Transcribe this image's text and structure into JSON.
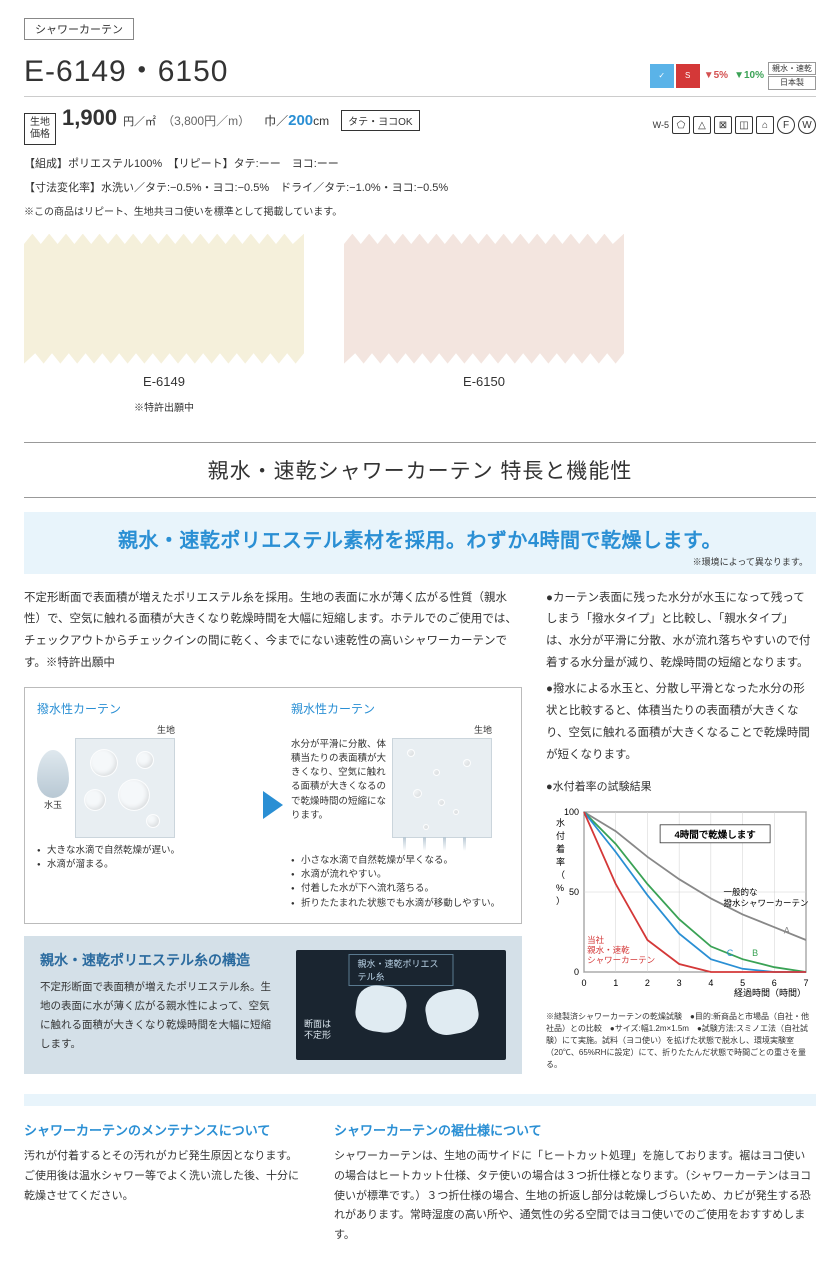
{
  "category_tag": "シャワーカーテン",
  "product_code": "E-6149・6150",
  "top_badges": {
    "b1_bg": "#5ab3e8",
    "b2_bg": "#d43838",
    "pct1": "5%",
    "pct1_color": "#d45050",
    "pct2": "10%",
    "pct2_color": "#3aa255",
    "side1": "親水・速乾",
    "side2": "日本製"
  },
  "price_label": "生地\n価格",
  "price_main": "1,900",
  "price_unit": "円／㎡",
  "price_sub": "（3,800円／m）",
  "width_label": "巾／",
  "width_val": "200",
  "width_unit": "cm",
  "ok_tag": "タテ・ヨコOK",
  "care_label": "W-5",
  "spec1": "【組成】ポリエステル100%　【リピート】タテ:ーー　ヨコ:ーー",
  "spec2": "【寸法変化率】水洗い／タテ:−0.5%・ヨコ:−0.5%　ドライ／タテ:−1.0%・ヨコ:−0.5%",
  "note1": "※この商品はリピート、生地共ヨコ使いを標準として掲載しています。",
  "swatches": [
    {
      "code": "E-6149",
      "color": "#f5f0db"
    },
    {
      "code": "E-6150",
      "color": "#f3e5df"
    }
  ],
  "patent_note": "※特許出願中",
  "section_title": "親水・速乾シャワーカーテン 特長と機能性",
  "headline": "親水・速乾ポリエステル素材を採用。わずか4時間で乾燥します。",
  "headline_note": "※環境によって異なります。",
  "body_left": "不定形断面で表面積が増えたポリエステル糸を採用。生地の表面に水が薄く広がる性質（親水性）で、空気に触れる面積が大きくなり乾燥時間を大幅に短縮します。ホテルでのご使用では、チェックアウトからチェックインの間に乾く、今までにない速乾性の高いシャワーカーテンです。※特許出願中",
  "body_right1": "●カーテン表面に残った水分が水玉になって残ってしまう「撥水タイプ」と比較し、「親水タイプ」は、水分が平滑に分散、水が流れ落ちやすいので付着する水分量が減り、乾燥時間の短縮となります。",
  "body_right2": "●撥水による水玉と、分散し平滑となった水分の形状と比較すると、体積当たりの表面積が大きくなり、空気に触れる面積が大きくなることで乾燥時間が短くなります。",
  "diagram": {
    "left_title": "撥水性カーテン",
    "right_title": "親水性カーテン",
    "drop_label": "水玉",
    "fabric_label": "生地",
    "right_text": "水分が平滑に分散、体積当たりの表面積が大きくなり、空気に触れる面積が大きくなるので乾燥時間の短縮になります。",
    "left_notes": [
      "大きな水滴で自然乾燥が遅い。",
      "水滴が溜まる。"
    ],
    "right_notes": [
      "小さな水滴で自然乾燥が早くなる。",
      "水滴が流れやすい。",
      "付着した水が下へ流れ落ちる。",
      "折りたたまれた状態でも水滴が移動しやすい。"
    ],
    "arrow_color": "#2a8fd4"
  },
  "fiber": {
    "title": "親水・速乾ポリエステル糸の構造",
    "text": "不定形断面で表面積が増えたポリエステル糸。生地の表面に水が薄く広がる親水性によって、空気に触れる面積が大きくなり乾燥時間を大幅に短縮します。",
    "caption": "親水・速乾ポリエステル糸",
    "sub": "断面は\n不定形"
  },
  "chart": {
    "title": "●水付着率の試験結果",
    "ylabel": "水付着率（%）",
    "xlabel": "経過時間（時間）",
    "xlim": [
      0,
      7
    ],
    "ylim": [
      0,
      100
    ],
    "xticks": [
      0,
      1,
      2,
      3,
      4,
      5,
      6,
      7
    ],
    "yticks": [
      0,
      50,
      100
    ],
    "annot1": "4時間で乾燥します",
    "annot2": "一般的な\n撥水シャワーカーテン",
    "annot3": "当社\n親水・速乾\nシャワーカーテン",
    "series": [
      {
        "name": "A",
        "color": "#888888",
        "pts": [
          [
            0,
            100
          ],
          [
            1,
            88
          ],
          [
            2,
            72
          ],
          [
            3,
            58
          ],
          [
            4,
            46
          ],
          [
            5,
            36
          ],
          [
            6,
            28
          ],
          [
            7,
            20
          ]
        ]
      },
      {
        "name": "B",
        "color": "#3aa255",
        "pts": [
          [
            0,
            100
          ],
          [
            1,
            80
          ],
          [
            2,
            55
          ],
          [
            3,
            33
          ],
          [
            4,
            16
          ],
          [
            5,
            8
          ],
          [
            6,
            3
          ],
          [
            7,
            0
          ]
        ]
      },
      {
        "name": "C",
        "color": "#2a8fd4",
        "pts": [
          [
            0,
            100
          ],
          [
            1,
            75
          ],
          [
            2,
            48
          ],
          [
            3,
            24
          ],
          [
            4,
            8
          ],
          [
            5,
            2
          ],
          [
            6,
            0
          ],
          [
            7,
            0
          ]
        ]
      },
      {
        "name": "red",
        "color": "#d43838",
        "pts": [
          [
            0,
            100
          ],
          [
            1,
            55
          ],
          [
            2,
            20
          ],
          [
            3,
            5
          ],
          [
            4,
            0
          ],
          [
            5,
            0
          ],
          [
            6,
            0
          ],
          [
            7,
            0
          ]
        ]
      }
    ],
    "grid_color": "#d0d0d0",
    "axis_color": "#333333",
    "background": "#ffffff"
  },
  "chart_note": "※縫製済シャワーカーテンの乾燥試験　●目的:新商品と市場品（自社・他社品）との比較　●サイズ:幅1.2m×1.5m　●試験方法:スミノエ法（自社試験）にて実施。試料（ヨコ使い）を拡げた状態で脱水し、環境実験室（20℃、65%RHに設定）にて、折りたたんだ状態で時間ごとの重さを量る。",
  "maint": {
    "title": "シャワーカーテンのメンテナンスについて",
    "text": "汚れが付着するとその汚れがカビ発生原因となります。ご使用後は温水シャワー等でよく洗い流した後、十分に乾燥させてください。"
  },
  "hem": {
    "title": "シャワーカーテンの裾仕様について",
    "text": "シャワーカーテンは、生地の両サイドに「ヒートカット処理」を施しております。裾はヨコ使いの場合はヒートカット仕様、タテ使いの場合は３つ折仕様となります。（シャワーカーテンはヨコ使いが標準です。）３つ折仕様の場合、生地の折返し部分は乾燥しづらいため、カビが発生する恐れがあります。常時湿度の高い所や、通気性の劣る空間ではヨコ使いでのご使用をおすすめします。"
  }
}
